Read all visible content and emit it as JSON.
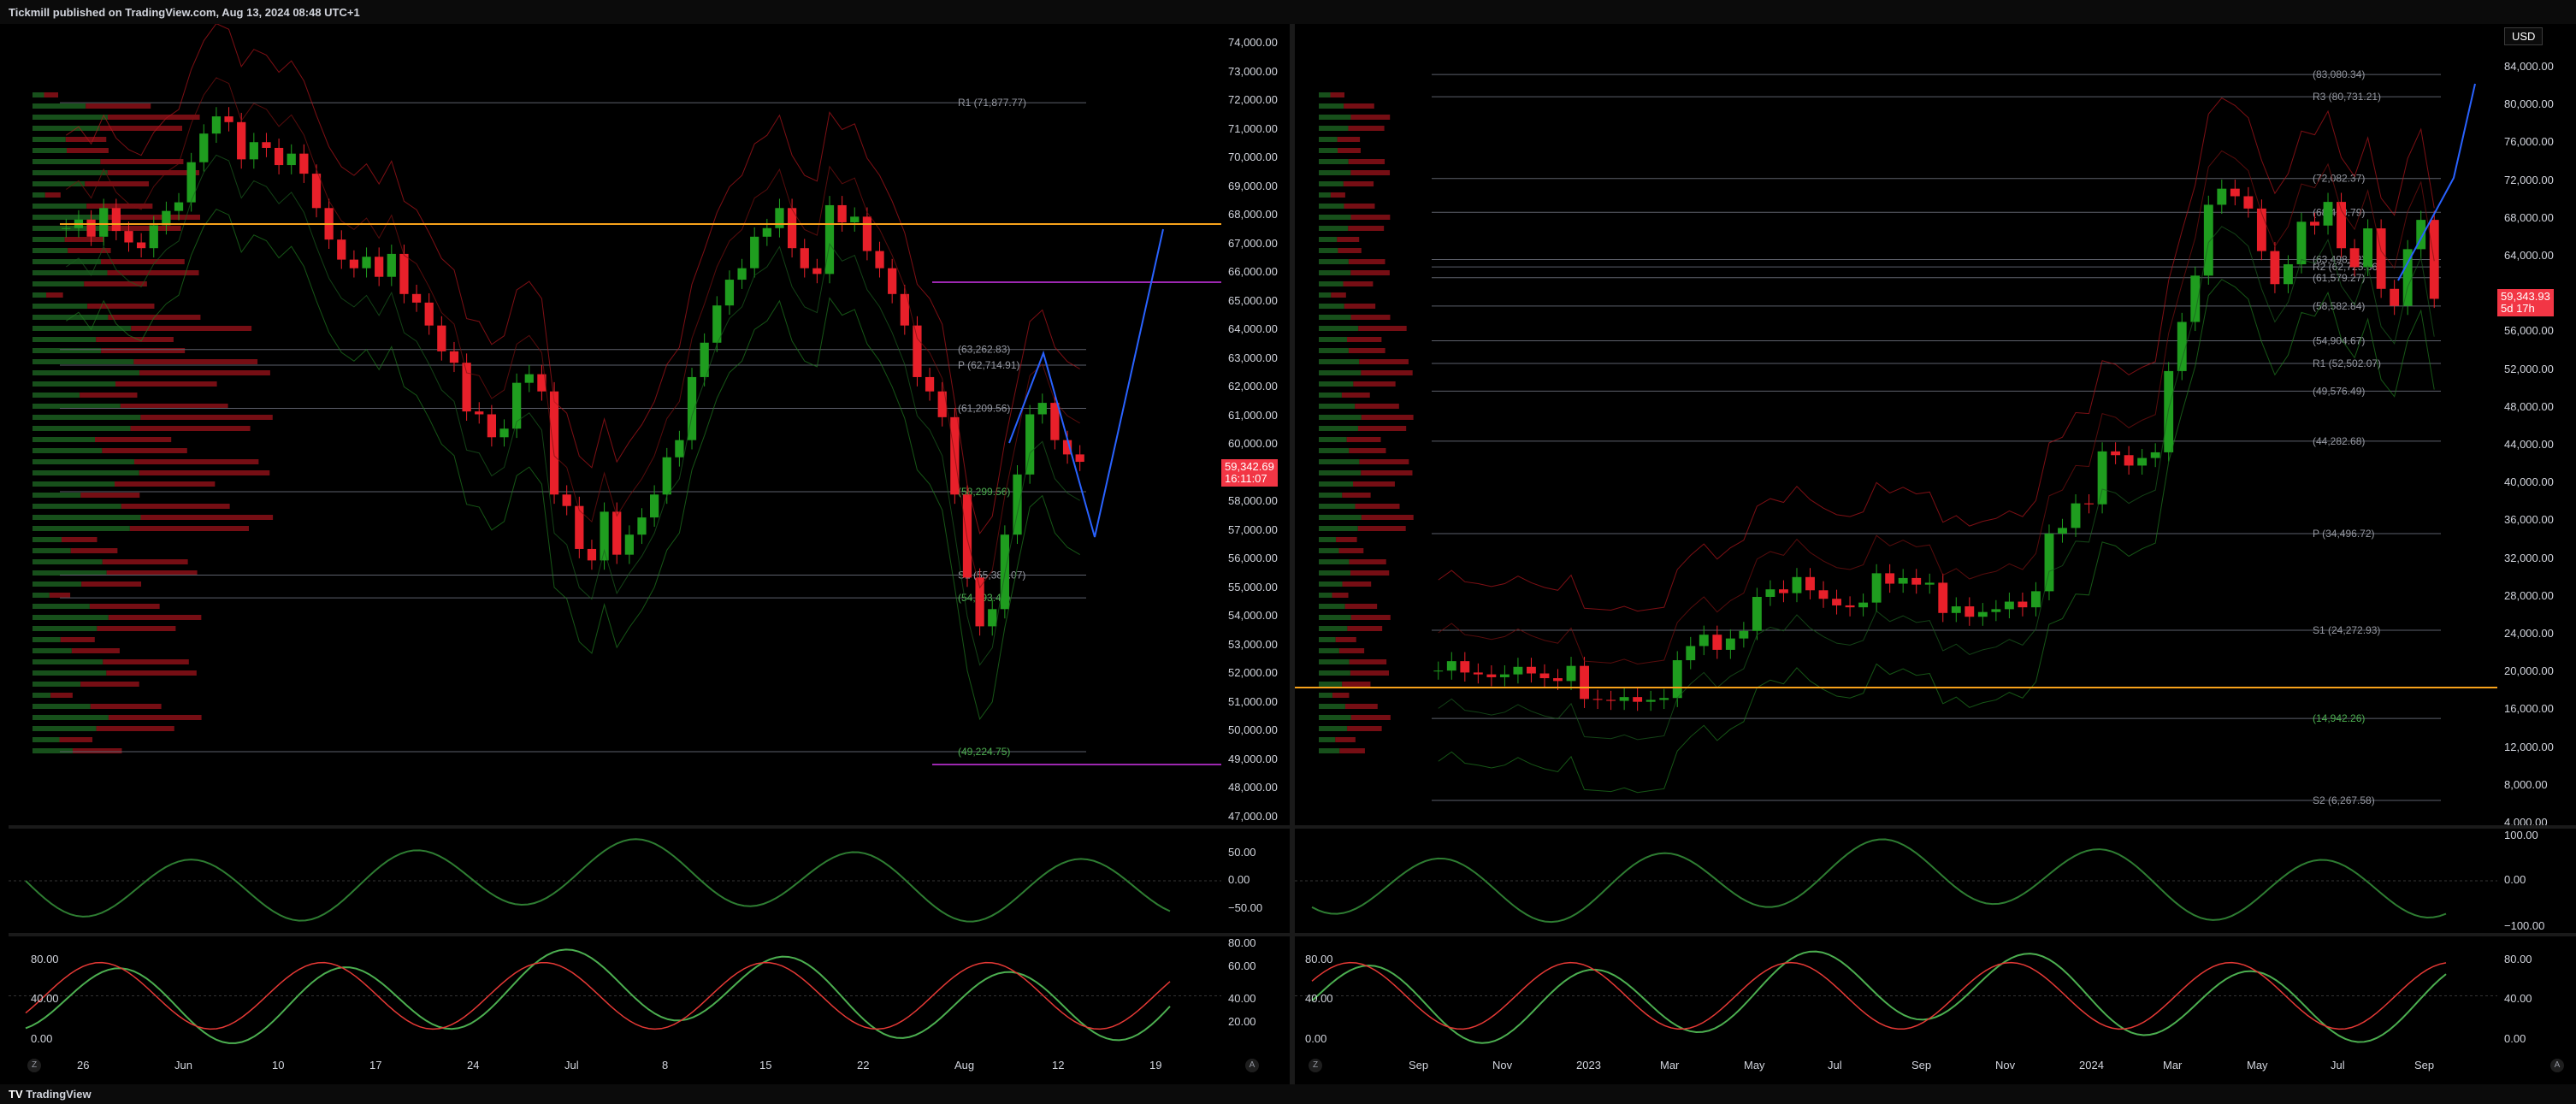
{
  "header": {
    "published": "Tickmill published on TradingView.com, Aug 13, 2024 08:48 UTC+1"
  },
  "footer": {
    "logo": "TradingView"
  },
  "colors": {
    "bull": "#089981",
    "bear": "#f23645",
    "green": "#1f7a1f",
    "red": "#b2161d",
    "orange": "#f7a21b",
    "purple": "#9c27b0",
    "blue": "#2962ff"
  },
  "left": {
    "price_axis": [
      "74,000.00",
      "73,000.00",
      "72,000.00",
      "71,000.00",
      "70,000.00",
      "69,000.00",
      "68,000.00",
      "67,000.00",
      "66,000.00",
      "65,000.00",
      "64,000.00",
      "63,000.00",
      "62,000.00",
      "61,000.00",
      "60,000.00",
      "59,000.00",
      "58,000.00",
      "57,000.00",
      "56,000.00",
      "55,000.00",
      "54,000.00",
      "53,000.00",
      "52,000.00",
      "51,000.00",
      "50,000.00",
      "49,000.00",
      "48,000.00",
      "47,000.00"
    ],
    "price_tag": {
      "price": "59,342.69",
      "countdown": "16:11:07"
    },
    "levels": [
      {
        "label": "R1 (71,877.77)",
        "price": 71878
      },
      {
        "label": "(63,262.83)",
        "price": 63263
      },
      {
        "label": "P (62,714.91)",
        "price": 62715
      },
      {
        "label": "(61,209.56)",
        "price": 61210
      },
      {
        "label": "(58,299.56)",
        "price": 58300
      },
      {
        "label": "S1 (55,389.07)",
        "price": 55389
      },
      {
        "label": "(54,593.44)",
        "price": 54593
      },
      {
        "label": "(49,224.75)",
        "price": 49225
      }
    ],
    "rsi_axis": [
      "50.00",
      "0.00",
      "−50.00"
    ],
    "stoch_axis": [
      "80.00",
      "60.00",
      "40.00",
      "20.00"
    ],
    "stoch_axis_left": [
      "80.00",
      "40.00",
      "0.00"
    ],
    "time_axis": [
      "26",
      "Jun",
      "10",
      "17",
      "24",
      "Jul",
      "8",
      "15",
      "22",
      "Aug",
      "12",
      "19"
    ]
  },
  "right": {
    "currency": "USD",
    "price_axis": [
      "84,000.00",
      "80,000.00",
      "76,000.00",
      "72,000.00",
      "68,000.00",
      "64,000.00",
      "60,000.00",
      "56,000.00",
      "52,000.00",
      "48,000.00",
      "44,000.00",
      "40,000.00",
      "36,000.00",
      "32,000.00",
      "28,000.00",
      "24,000.00",
      "20,000.00",
      "16,000.00",
      "12,000.00",
      "8,000.00",
      "4,000.00"
    ],
    "price_tag": {
      "price": "59,343.93",
      "countdown": "5d 17h"
    },
    "levels": [
      {
        "label": "(83,080.34)",
        "price": 83080
      },
      {
        "label": "R3 (80,731.21)",
        "price": 80731
      },
      {
        "label": "(72,082.37)",
        "price": 72082
      },
      {
        "label": "(68,498.79)",
        "price": 68499
      },
      {
        "label": "R2 (62,725.86)",
        "price": 62726
      },
      {
        "label": "(63,498.52)",
        "price": 63499
      },
      {
        "label": "(61,579.27)",
        "price": 61579
      },
      {
        "label": "(58,582.84)",
        "price": 58583
      },
      {
        "label": "(54,904.67)",
        "price": 54905
      },
      {
        "label": "R1 (52,502.07)",
        "price": 52502
      },
      {
        "label": "(49,576.49)",
        "price": 49576
      },
      {
        "label": "(44,282.68)",
        "price": 44283
      },
      {
        "label": "P (34,496.72)",
        "price": 34497
      },
      {
        "label": "S1 (24,272.93)",
        "price": 24273
      },
      {
        "label": "(14,942.26)",
        "price": 14942
      },
      {
        "label": "S2 (6,267.58)",
        "price": 6268
      }
    ],
    "rsi_axis": [
      "100.00",
      "0.00",
      "−100.00"
    ],
    "stoch_axis": [
      "80.00",
      "40.00",
      "0.00"
    ],
    "time_axis": [
      "Sep",
      "Nov",
      "2023",
      "Mar",
      "May",
      "Jul",
      "Sep",
      "Nov",
      "2024",
      "Mar",
      "May",
      "Jul",
      "Sep"
    ]
  },
  "chart_data": [
    {
      "type": "candlestick",
      "title": "",
      "ylim": [
        47000,
        74000
      ],
      "close_approx": [
        67500,
        67800,
        67200,
        68200,
        67400,
        67000,
        66800,
        67600,
        68100,
        68400,
        69800,
        70800,
        71400,
        71200,
        69900,
        70500,
        70300,
        69700,
        70100,
        69400,
        68200,
        67100,
        66400,
        66100,
        66500,
        65800,
        66600,
        65200,
        64900,
        64100,
        63200,
        62800,
        61100,
        61000,
        60200,
        60500,
        62100,
        62400,
        61800,
        58200,
        57800,
        56300,
        55900,
        57600,
        56100,
        56800,
        57400,
        58200,
        59500,
        60100,
        62300,
        63500,
        64800,
        65700,
        66100,
        67200,
        67500,
        68200,
        66800,
        66100,
        65900,
        68300,
        67700,
        67900,
        66700,
        66100,
        65200,
        64100,
        62300,
        61800,
        60900,
        58200,
        55300,
        53600,
        54200,
        56800,
        58900,
        61000,
        61400,
        60100,
        59600,
        59342
      ]
    },
    {
      "type": "candlestick",
      "title": "",
      "ylim": [
        4000,
        84000
      ],
      "close_approx": [
        20000,
        21000,
        19800,
        19600,
        19300,
        19600,
        20400,
        19700,
        19200,
        18900,
        20500,
        17000,
        16900,
        16800,
        17200,
        16700,
        16900,
        17100,
        21100,
        22600,
        23800,
        22200,
        23400,
        24200,
        27800,
        28600,
        28200,
        29900,
        28500,
        27600,
        26900,
        26700,
        27200,
        30300,
        29200,
        29800,
        29100,
        29300,
        26100,
        26800,
        25700,
        26200,
        26500,
        27300,
        26700,
        28400,
        34500,
        35100,
        37700,
        37600,
        43200,
        42800,
        41700,
        42500,
        43100,
        51700,
        56900,
        61800,
        69300,
        71000,
        70200,
        68900,
        64400,
        60900,
        63000,
        67500,
        67100,
        69600,
        64700,
        62700,
        66800,
        60400,
        58600,
        64600,
        67700,
        59343
      ]
    }
  ]
}
